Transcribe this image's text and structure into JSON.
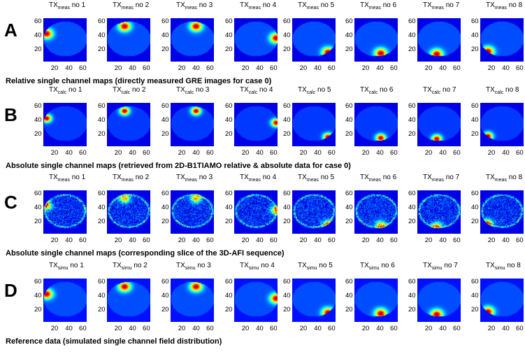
{
  "rows": [
    {
      "letter": "A",
      "caption": "Relative single channel maps (directly measured GRE images for case 0)",
      "tx_sub": "meas",
      "style": "gre"
    },
    {
      "letter": "B",
      "caption": "Absolute single channel maps (retrieved from 2D-B1TIAMO relative & absolute data for case 0)",
      "tx_sub": "calc",
      "style": "calc"
    },
    {
      "letter": "C",
      "caption": "Absolute single channel maps (corresponding slice of the 3D-AFI sequence)",
      "tx_sub": "meas",
      "style": "afi"
    },
    {
      "letter": "D",
      "caption": "Reference data (simulated single channel field distribution)",
      "tx_sub": "simu",
      "style": "simu"
    }
  ],
  "panel_prefix": "TX",
  "panel_suffix_word": "no",
  "channels": [
    "1",
    "2",
    "3",
    "4",
    "5",
    "6",
    "7",
    "8"
  ],
  "channel_hotspots": [
    {
      "channel": "1",
      "location": "left"
    },
    {
      "channel": "2",
      "location": "top-left"
    },
    {
      "channel": "3",
      "location": "top-right"
    },
    {
      "channel": "4",
      "location": "right"
    },
    {
      "channel": "5",
      "location": "bottom-right"
    },
    {
      "channel": "6",
      "location": "bottom-center"
    },
    {
      "channel": "7",
      "location": "bottom-center-left"
    },
    {
      "channel": "8",
      "location": "bottom-left"
    }
  ],
  "axes": {
    "y_ticks": [
      "20",
      "40",
      "60"
    ],
    "x_ticks": [
      "20",
      "40",
      "60"
    ],
    "range": [
      0,
      64
    ]
  },
  "colormap": "jet",
  "colors": {
    "background": "#00008f",
    "low": "#1030d0",
    "hot": "#ff2000"
  }
}
